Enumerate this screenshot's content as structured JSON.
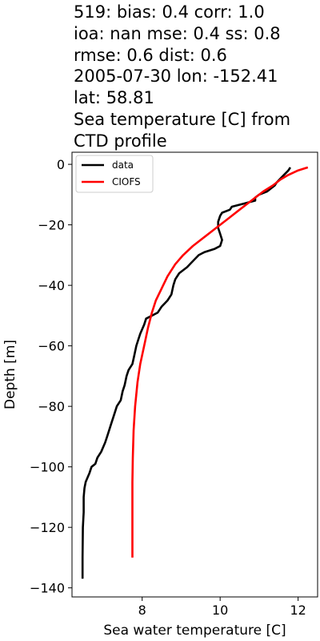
{
  "title_lines": [
    "519: bias: 0.4  corr: 1.0",
    "ioa: nan  mse: 0.4  ss: 0.8",
    "rmse: 0.6  dist: 0.6",
    "2005-07-30 lon: -152.41",
    "lat: 58.81",
    "Sea temperature [C] from",
    "CTD profile"
  ],
  "chart_data": {
    "type": "line",
    "xlabel": "Sea water temperature [C]",
    "ylabel": "Depth [m]",
    "xlim": [
      6.2,
      12.5
    ],
    "ylim": [
      -143,
      4
    ],
    "xticks": [
      8,
      10,
      12
    ],
    "yticks": [
      0,
      -20,
      -40,
      -60,
      -80,
      -100,
      -120,
      -140
    ],
    "grid": false,
    "legend_position": "top-left",
    "series": [
      {
        "name": "data",
        "color": "#000000",
        "points": [
          [
            11.8,
            -1
          ],
          [
            11.75,
            -2
          ],
          [
            11.6,
            -4
          ],
          [
            11.45,
            -6
          ],
          [
            11.4,
            -7
          ],
          [
            11.2,
            -9
          ],
          [
            11.0,
            -10
          ],
          [
            10.9,
            -11
          ],
          [
            10.9,
            -12
          ],
          [
            10.6,
            -13
          ],
          [
            10.3,
            -14
          ],
          [
            10.25,
            -15
          ],
          [
            10.05,
            -16
          ],
          [
            10.0,
            -17
          ],
          [
            9.95,
            -19
          ],
          [
            9.95,
            -21
          ],
          [
            10.0,
            -23
          ],
          [
            10.05,
            -25
          ],
          [
            10.0,
            -27
          ],
          [
            9.85,
            -28
          ],
          [
            9.6,
            -29
          ],
          [
            9.45,
            -30
          ],
          [
            9.3,
            -32
          ],
          [
            9.15,
            -34
          ],
          [
            8.95,
            -36
          ],
          [
            8.85,
            -38
          ],
          [
            8.8,
            -40
          ],
          [
            8.75,
            -43
          ],
          [
            8.65,
            -45
          ],
          [
            8.5,
            -47
          ],
          [
            8.4,
            -49
          ],
          [
            8.1,
            -51
          ],
          [
            8.05,
            -53
          ],
          [
            7.95,
            -56
          ],
          [
            7.9,
            -58
          ],
          [
            7.85,
            -60
          ],
          [
            7.8,
            -63
          ],
          [
            7.75,
            -66
          ],
          [
            7.65,
            -68
          ],
          [
            7.6,
            -70
          ],
          [
            7.55,
            -73
          ],
          [
            7.5,
            -75
          ],
          [
            7.45,
            -78
          ],
          [
            7.35,
            -80
          ],
          [
            7.3,
            -82
          ],
          [
            7.2,
            -86
          ],
          [
            7.1,
            -90
          ],
          [
            7.05,
            -92
          ],
          [
            6.95,
            -95
          ],
          [
            6.85,
            -97
          ],
          [
            6.8,
            -99
          ],
          [
            6.7,
            -100
          ],
          [
            6.65,
            -102
          ],
          [
            6.6,
            -103.5
          ],
          [
            6.55,
            -105
          ],
          [
            6.52,
            -107
          ],
          [
            6.5,
            -110
          ],
          [
            6.5,
            -115
          ],
          [
            6.48,
            -120
          ],
          [
            6.47,
            -130
          ],
          [
            6.47,
            -137
          ]
        ]
      },
      {
        "name": "CIOFS",
        "color": "#ff0000",
        "points": [
          [
            12.25,
            -1
          ],
          [
            12.0,
            -2
          ],
          [
            11.75,
            -3.5
          ],
          [
            11.55,
            -5
          ],
          [
            11.35,
            -7
          ],
          [
            11.1,
            -9
          ],
          [
            10.8,
            -12
          ],
          [
            10.5,
            -15
          ],
          [
            10.2,
            -18
          ],
          [
            9.9,
            -21
          ],
          [
            9.6,
            -24
          ],
          [
            9.3,
            -27
          ],
          [
            9.05,
            -30
          ],
          [
            8.85,
            -33
          ],
          [
            8.65,
            -37
          ],
          [
            8.5,
            -41
          ],
          [
            8.35,
            -45
          ],
          [
            8.25,
            -49
          ],
          [
            8.15,
            -54
          ],
          [
            8.05,
            -60
          ],
          [
            7.95,
            -66
          ],
          [
            7.88,
            -72
          ],
          [
            7.82,
            -80
          ],
          [
            7.78,
            -88
          ],
          [
            7.76,
            -97
          ],
          [
            7.75,
            -105
          ],
          [
            7.75,
            -115
          ],
          [
            7.75,
            -130
          ]
        ]
      }
    ]
  }
}
